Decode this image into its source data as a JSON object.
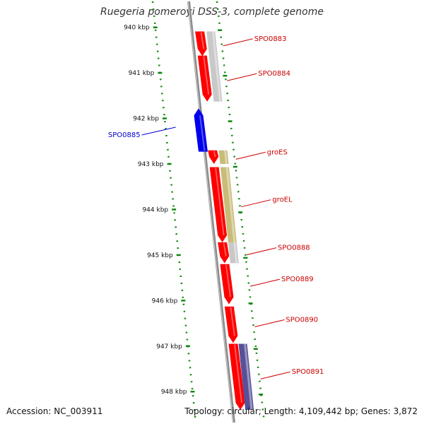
{
  "title": "Ruegeria pomeroyi DSS-3, complete genome",
  "ticks": [
    "940 kbp",
    "941 kbp",
    "942 kbp",
    "943 kbp",
    "944 kbp",
    "945 kbp",
    "946 kbp",
    "947 kbp",
    "948 kbp"
  ],
  "genes": [
    {
      "label": "SPO0883",
      "start": 940.09,
      "end": 940.63,
      "strand": "minus",
      "color": "#ff0000",
      "cog_color": "#c8c8c8"
    },
    {
      "label": "SPO0884",
      "start": 940.62,
      "end": 941.63,
      "strand": "minus",
      "color": "#ff0000",
      "cog_color": "#c8c8c8"
    },
    {
      "label": "SPO0885",
      "start": 941.78,
      "end": 942.73,
      "strand": "plus",
      "color": "#0000ee"
    },
    {
      "label": "groES",
      "start": 942.7,
      "end": 943.0,
      "strand": "minus",
      "color": "#ff0000",
      "cog_color": "#c8bc78"
    },
    {
      "label": "groEL",
      "start": 943.07,
      "end": 944.72,
      "strand": "minus",
      "color": "#ff0000",
      "cog_color": "#c8bc78"
    },
    {
      "label": "SPO0888",
      "start": 944.72,
      "end": 945.18,
      "strand": "minus",
      "color": "#ff0000",
      "cog_color": "#c8c8c8"
    },
    {
      "label": "SPO0889",
      "start": 945.2,
      "end": 946.08,
      "strand": "minus",
      "color": "#ff0000"
    },
    {
      "label": "SPO0890",
      "start": 946.13,
      "end": 946.93,
      "strand": "minus",
      "color": "#ff0000"
    },
    {
      "label": "SPO0891",
      "start": 946.95,
      "end": 948.4,
      "strand": "minus",
      "color": "#ff0000",
      "cog_color": "#585098"
    }
  ],
  "footer": {
    "accession": "Accession: NC_003911",
    "info": "Topology: circular; Length: 4,109,442 bp; Genes: 3,872"
  }
}
